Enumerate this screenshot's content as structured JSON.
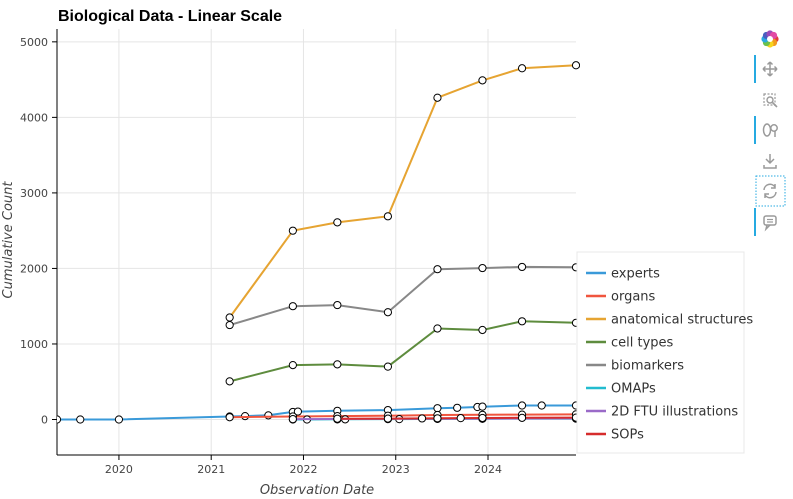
{
  "chart_data": {
    "type": "line",
    "title": "Biological Data - Linear Scale",
    "xlabel": "Observation Date",
    "ylabel": "Cumulative Count",
    "x_ticks": [
      "2020",
      "2021",
      "2022",
      "2023",
      "2024"
    ],
    "y_ticks": [
      "0",
      "1000",
      "2000",
      "3000",
      "4000",
      "5000"
    ],
    "xlim": [
      "2019-05-01",
      "2024-12-15"
    ],
    "ylim": [
      -470,
      5170
    ],
    "grid": true,
    "legend_position": "bottom-right, outside plot",
    "series": [
      {
        "name": "experts",
        "color": "#3a9ad9",
        "points": [
          [
            "2019-05-01",
            0
          ],
          [
            "2019-08-01",
            0
          ],
          [
            "2020-01-01",
            0
          ],
          [
            "2021-03-15",
            40
          ],
          [
            "2021-05-15",
            45
          ],
          [
            "2021-08-15",
            55
          ],
          [
            "2021-11-20",
            100
          ],
          [
            "2021-12-10",
            105
          ],
          [
            "2022-05-15",
            115
          ],
          [
            "2022-12-01",
            125
          ],
          [
            "2023-06-15",
            150
          ],
          [
            "2023-09-01",
            155
          ],
          [
            "2023-11-20",
            165
          ],
          [
            "2023-12-10",
            170
          ],
          [
            "2024-05-15",
            185
          ],
          [
            "2024-08-01",
            185
          ],
          [
            "2024-12-15",
            185
          ]
        ]
      },
      {
        "name": "organs",
        "color": "#f0553e",
        "points": [
          [
            "2021-03-15",
            30
          ],
          [
            "2021-11-20",
            40
          ],
          [
            "2022-05-15",
            45
          ],
          [
            "2022-12-01",
            50
          ],
          [
            "2023-06-15",
            60
          ],
          [
            "2023-12-10",
            62
          ],
          [
            "2024-05-15",
            65
          ],
          [
            "2024-12-15",
            68
          ]
        ]
      },
      {
        "name": "anatomical structures",
        "color": "#e6a432",
        "points": [
          [
            "2021-03-15",
            1350
          ],
          [
            "2021-11-20",
            2500
          ],
          [
            "2022-05-15",
            2610
          ],
          [
            "2022-12-01",
            2690
          ],
          [
            "2023-06-15",
            4260
          ],
          [
            "2023-12-10",
            4490
          ],
          [
            "2024-05-15",
            4650
          ],
          [
            "2024-12-15",
            4690
          ]
        ]
      },
      {
        "name": "cell types",
        "color": "#5e8c3e",
        "points": [
          [
            "2021-03-15",
            505
          ],
          [
            "2021-11-20",
            720
          ],
          [
            "2022-05-15",
            730
          ],
          [
            "2022-12-01",
            700
          ],
          [
            "2023-06-15",
            1205
          ],
          [
            "2023-12-10",
            1185
          ],
          [
            "2024-05-15",
            1300
          ],
          [
            "2024-12-15",
            1280
          ]
        ]
      },
      {
        "name": "biomarkers",
        "color": "#888888",
        "points": [
          [
            "2021-03-15",
            1250
          ],
          [
            "2021-11-20",
            1500
          ],
          [
            "2022-05-15",
            1515
          ],
          [
            "2022-12-01",
            1420
          ],
          [
            "2023-06-15",
            1990
          ],
          [
            "2023-12-10",
            2005
          ],
          [
            "2024-05-15",
            2020
          ],
          [
            "2024-12-15",
            2015
          ]
        ]
      },
      {
        "name": "OMAPs",
        "color": "#22bccf",
        "points": [
          [
            "2021-11-20",
            0
          ],
          [
            "2022-01-15",
            0
          ],
          [
            "2022-05-15",
            2
          ],
          [
            "2022-06-15",
            2
          ],
          [
            "2022-12-01",
            5
          ],
          [
            "2023-01-15",
            5
          ],
          [
            "2023-06-15",
            8
          ],
          [
            "2023-12-10",
            10
          ],
          [
            "2024-12-15",
            12
          ]
        ]
      },
      {
        "name": "2D FTU illustrations",
        "color": "#9a6ac8",
        "points": [
          [
            "2021-11-20",
            5
          ],
          [
            "2022-05-15",
            6
          ],
          [
            "2022-12-01",
            8
          ],
          [
            "2023-06-15",
            10
          ],
          [
            "2023-12-10",
            12
          ],
          [
            "2024-12-15",
            15
          ]
        ]
      },
      {
        "name": "SOPs",
        "color": "#d62c2c",
        "points": [
          [
            "2022-05-15",
            10
          ],
          [
            "2022-12-01",
            12
          ],
          [
            "2023-04-15",
            14
          ],
          [
            "2023-06-15",
            16
          ],
          [
            "2023-09-15",
            18
          ],
          [
            "2023-12-10",
            20
          ],
          [
            "2024-05-15",
            22
          ],
          [
            "2024-12-15",
            25
          ]
        ]
      }
    ]
  },
  "toolbar": {
    "tools": [
      {
        "icon": "bokeh-logo-icon"
      },
      {
        "icon": "pan-icon",
        "active": true
      },
      {
        "icon": "box-zoom-icon",
        "active": false
      },
      {
        "icon": "wheel-zoom-icon",
        "active": true
      },
      {
        "icon": "save-icon",
        "active": false
      },
      {
        "icon": "reset-icon",
        "active": false
      },
      {
        "icon": "hover-icon",
        "active": true
      }
    ]
  }
}
